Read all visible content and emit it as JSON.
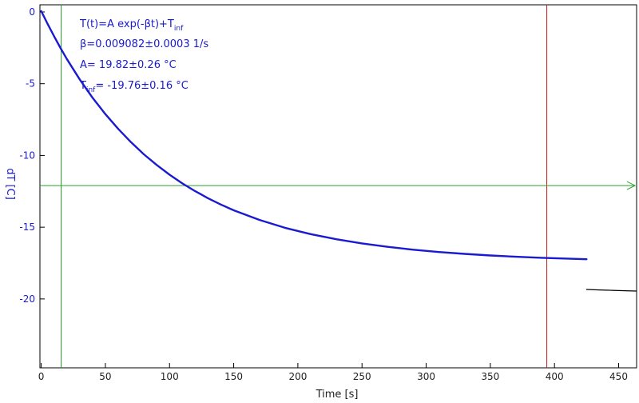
{
  "chart_data": {
    "type": "line",
    "xlabel": "Time [s]",
    "ylabel": "dT [C]",
    "xlim": [
      -1,
      464
    ],
    "ylim": [
      -24.8,
      0.5
    ],
    "xticks": [
      0,
      50,
      100,
      150,
      200,
      250,
      300,
      350,
      400,
      450
    ],
    "yticks": [
      0,
      -5,
      -10,
      -15,
      -20
    ],
    "xtick_labels": [
      "0",
      "50",
      "100",
      "150",
      "200",
      "250",
      "300",
      "350",
      "400",
      "450"
    ],
    "ytick_labels": [
      "0",
      "-5",
      "-10",
      "-15",
      "-20"
    ],
    "grid": false,
    "fit": {
      "model": "T(t)=A exp(-βt)+T_inf",
      "A": 19.82,
      "beta": 0.009082,
      "T_inf": -19.76
    },
    "series": [
      {
        "color": "#1a1ad0",
        "style": "measured",
        "x": [
          0,
          5,
          10,
          15,
          20,
          30,
          40,
          50,
          60,
          70,
          80,
          90,
          100,
          110,
          120,
          130,
          140,
          150,
          170,
          190,
          210,
          230,
          250,
          270,
          290,
          310,
          330,
          350,
          370,
          390,
          410,
          425
        ],
        "y": [
          0.06,
          -0.83,
          -1.69,
          -2.51,
          -3.28,
          -4.7,
          -5.98,
          -7.12,
          -8.15,
          -9.08,
          -9.92,
          -10.66,
          -11.34,
          -11.95,
          -12.49,
          -12.98,
          -13.42,
          -13.82,
          -14.49,
          -15.04,
          -15.48,
          -15.84,
          -16.13,
          -16.37,
          -16.57,
          -16.73,
          -16.86,
          -16.97,
          -17.06,
          -17.13,
          -17.19,
          -17.23
        ]
      },
      {
        "color": "#000000",
        "style": "fit",
        "x": [
          425,
          435,
          445,
          455,
          464
        ],
        "y": [
          -19.34,
          -19.37,
          -19.4,
          -19.43,
          -19.45
        ]
      }
    ],
    "annotations": {
      "formula_main": "T(t)=A exp(-βt)+T",
      "formula_sub": "inf",
      "beta_line": "β=0.009082±0.0003 1/s",
      "a_line": "A= 19.82±0.26 °C",
      "tinf_prefix": "T",
      "tinf_sub": "inf",
      "tinf_value": "= -19.76±0.16 °C"
    },
    "cursors": {
      "vertical_green_x": 15.5,
      "vertical_red_x": 394,
      "horizontal_green_y": -12.1
    },
    "colors": {
      "data": "#1a1ad0",
      "fit": "#000000",
      "green_cursor": "#2aa02a",
      "red_cursor": "#c02020",
      "axis": "#000000"
    }
  }
}
